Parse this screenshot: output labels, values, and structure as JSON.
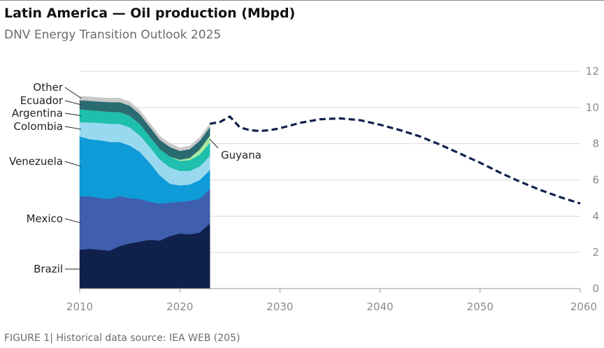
{
  "header": {
    "title": "Latin America — Oil production (Mbpd)",
    "subtitle": "DNV Energy Transition Outlook 2025"
  },
  "footer": {
    "note": "FIGURE 1| Historical data source: IEA WEB (205)"
  },
  "chart_data": {
    "type": "area",
    "title": "Latin America — Oil production (Mbpd)",
    "subtitle": "DNV Energy Transition Outlook 2025",
    "xlim": [
      2010,
      2060
    ],
    "ylim": [
      0,
      12
    ],
    "x_ticks": [
      2010,
      2020,
      2030,
      2040,
      2050,
      2060
    ],
    "y_ticks": [
      0,
      2,
      4,
      6,
      8,
      10,
      12
    ],
    "y_axis_side": "right",
    "grid": "horizontal",
    "legend": "inline labels at left",
    "historical": {
      "x": [
        2010,
        2011,
        2012,
        2013,
        2014,
        2015,
        2016,
        2017,
        2018,
        2019,
        2020,
        2021,
        2022,
        2023
      ],
      "series": [
        {
          "name": "Brazil",
          "color": "#0f204b",
          "values": [
            2.15,
            2.2,
            2.15,
            2.1,
            2.35,
            2.5,
            2.6,
            2.7,
            2.65,
            2.9,
            3.05,
            3.0,
            3.1,
            3.6
          ]
        },
        {
          "name": "Mexico",
          "color": "#3f5fae",
          "values": [
            2.95,
            2.9,
            2.85,
            2.85,
            2.75,
            2.5,
            2.35,
            2.1,
            2.05,
            1.85,
            1.75,
            1.85,
            1.85,
            1.9
          ]
        },
        {
          "name": "Venezuela",
          "color": "#0f9bd7",
          "values": [
            3.3,
            3.15,
            3.2,
            3.15,
            3.0,
            2.9,
            2.6,
            2.15,
            1.55,
            1.05,
            0.9,
            0.9,
            1.05,
            1.05
          ]
        },
        {
          "name": "Colombia",
          "color": "#99d9f0",
          "values": [
            0.8,
            0.92,
            0.95,
            1.0,
            1.0,
            1.0,
            0.92,
            0.88,
            0.88,
            0.9,
            0.8,
            0.75,
            0.75,
            0.78
          ]
        },
        {
          "name": "Argentina",
          "color": "#1fbfad",
          "values": [
            0.7,
            0.68,
            0.66,
            0.65,
            0.65,
            0.65,
            0.62,
            0.58,
            0.57,
            0.6,
            0.55,
            0.6,
            0.66,
            0.72
          ]
        },
        {
          "name": "Guyana",
          "color": "#a6e8a0",
          "values": [
            0,
            0,
            0,
            0,
            0,
            0,
            0,
            0,
            0,
            0,
            0.07,
            0.12,
            0.28,
            0.4
          ]
        },
        {
          "name": "Ecuador",
          "color": "#2a6b72",
          "values": [
            0.5,
            0.52,
            0.52,
            0.55,
            0.55,
            0.55,
            0.55,
            0.53,
            0.52,
            0.53,
            0.48,
            0.48,
            0.48,
            0.47
          ]
        },
        {
          "name": "Other",
          "color": "#c8c8c8",
          "values": [
            0.22,
            0.22,
            0.22,
            0.22,
            0.22,
            0.22,
            0.21,
            0.2,
            0.2,
            0.2,
            0.18,
            0.18,
            0.18,
            0.18
          ]
        }
      ]
    },
    "forecast": {
      "style": "dashed",
      "color": "#0f204b",
      "x": [
        2023,
        2024,
        2025,
        2026,
        2027,
        2028,
        2029,
        2030,
        2032,
        2034,
        2036,
        2038,
        2040,
        2042,
        2044,
        2046,
        2048,
        2050,
        2052,
        2054,
        2056,
        2058,
        2060
      ],
      "values": [
        9.1,
        9.2,
        9.5,
        8.9,
        8.75,
        8.7,
        8.75,
        8.85,
        9.15,
        9.35,
        9.4,
        9.3,
        9.05,
        8.75,
        8.4,
        7.95,
        7.45,
        6.95,
        6.4,
        5.9,
        5.45,
        5.05,
        4.7
      ]
    },
    "labels": [
      {
        "text": "Other",
        "series": "Other"
      },
      {
        "text": "Ecuador",
        "series": "Ecuador"
      },
      {
        "text": "Argentina",
        "series": "Argentina"
      },
      {
        "text": "Colombia",
        "series": "Colombia"
      },
      {
        "text": "Venezuela",
        "series": "Venezuela"
      },
      {
        "text": "Mexico",
        "series": "Mexico"
      },
      {
        "text": "Brazil",
        "series": "Brazil"
      },
      {
        "text": "Guyana",
        "series": "Guyana"
      }
    ]
  }
}
